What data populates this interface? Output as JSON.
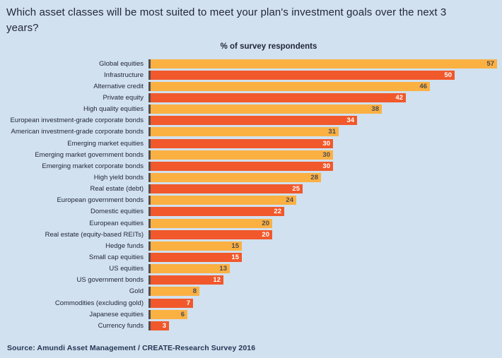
{
  "title": "Which asset classes will be most suited to meet your plan's investment goals over the next 3 years?",
  "subtitle": "% of survey respondents",
  "source": "Source: Amundi Asset Management / CREATE-Research Survey 2016",
  "colors": {
    "background": "#D1E1EF",
    "bar_yellow": "#FBB042",
    "bar_red": "#F1582B",
    "axis_tick": "#4E4F57",
    "text_dark": "#23263A",
    "value_on_yellow": "#4A4B50",
    "value_on_red": "#FFFFFF"
  },
  "chart_data": {
    "type": "bar",
    "orientation": "horizontal",
    "title": "% of survey respondents",
    "xlabel": "",
    "ylabel": "",
    "xlim": [
      0,
      60
    ],
    "grid": false,
    "legend": false,
    "value_labels_shown": true,
    "bar_colors_alternate": [
      "#FBB042",
      "#F1582B"
    ],
    "categories": [
      "Global equities",
      "Infrastructure",
      "Alternative credit",
      "Private equity",
      "High quality equities",
      "European investment-grade corporate bonds",
      "American investment-grade corporate bonds",
      "Emerging market equities",
      "Emerging market government bonds",
      "Emerging market corporate bonds",
      "High yield bonds",
      "Real estate (debt)",
      "European government bonds",
      "Domestic equities",
      "European equities",
      "Real estate (equity-based REITs)",
      "Hedge funds",
      "Small cap equities",
      "US equities",
      "US government bonds",
      "Gold",
      "Commodities (excluding gold)",
      "Japanese equities",
      "Currency funds"
    ],
    "values": [
      57,
      50,
      46,
      42,
      38,
      34,
      31,
      30,
      30,
      30,
      28,
      25,
      24,
      22,
      20,
      20,
      15,
      15,
      13,
      12,
      8,
      7,
      6,
      3
    ]
  }
}
